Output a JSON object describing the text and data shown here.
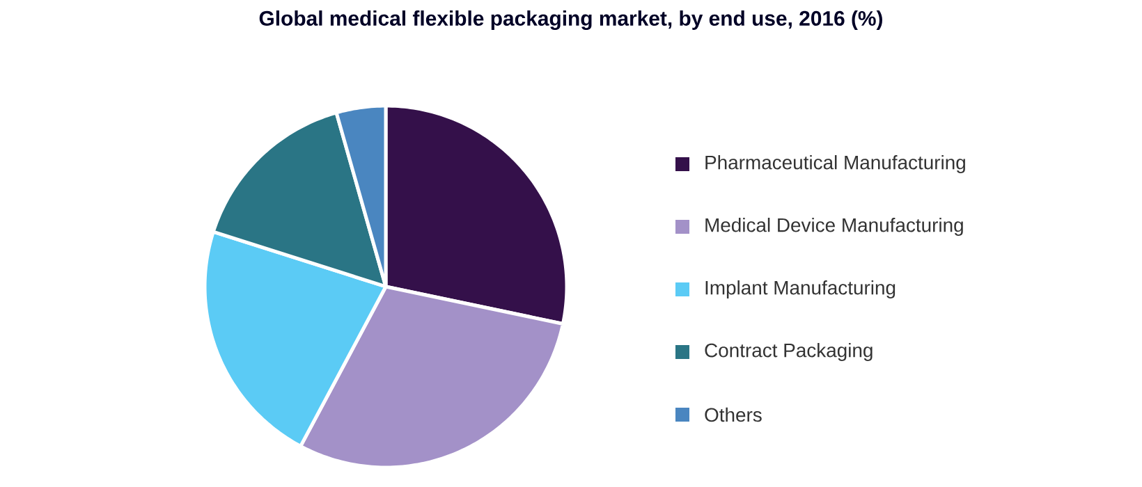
{
  "chart_data": {
    "type": "pie",
    "title": "Global medical flexible packaging market, by end use, 2016 (%)",
    "categories": [
      "Pharmaceutical Manufacturing",
      "Medical Device Manufacturing",
      "Implant Manufacturing",
      "Contract Packaging",
      "Others"
    ],
    "values": [
      28.3,
      29.5,
      22.1,
      15.7,
      4.4
    ],
    "colors": [
      "#34104a",
      "#a391c8",
      "#5bcbf5",
      "#2a7585",
      "#4a86c0"
    ],
    "legend": "right"
  }
}
